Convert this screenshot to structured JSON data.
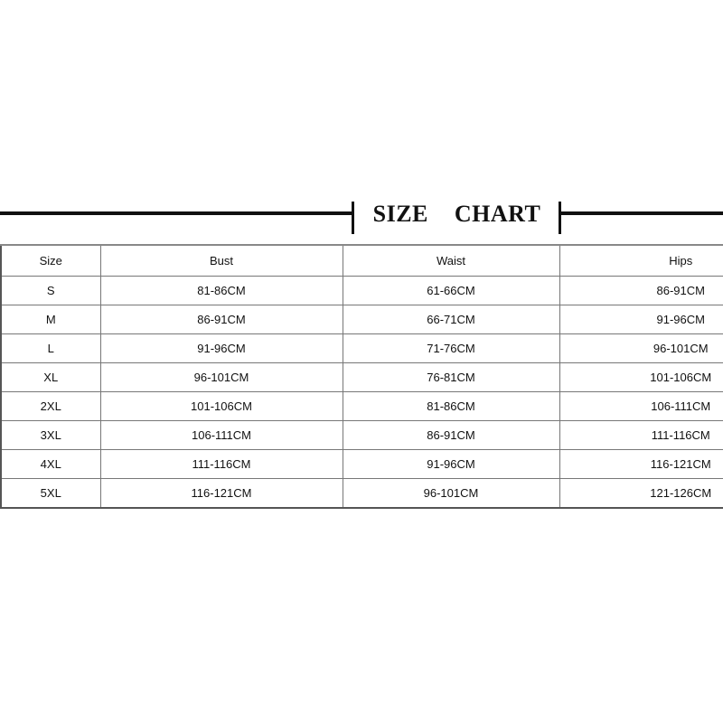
{
  "title": "SIZE CHART",
  "table": {
    "headers": [
      "Size",
      "Bust",
      "Waist",
      "Hips"
    ],
    "rows": [
      [
        "S",
        "81-86CM",
        "61-66CM",
        "86-91CM"
      ],
      [
        "M",
        "86-91CM",
        "66-71CM",
        "91-96CM"
      ],
      [
        "L",
        "91-96CM",
        "71-76CM",
        "96-101CM"
      ],
      [
        "XL",
        "96-101CM",
        "76-81CM",
        "101-106CM"
      ],
      [
        "2XL",
        "101-106CM",
        "81-86CM",
        "106-111CM"
      ],
      [
        "3XL",
        "106-111CM",
        "86-91CM",
        "111-116CM"
      ],
      [
        "4XL",
        "111-116CM",
        "91-96CM",
        "116-121CM"
      ],
      [
        "5XL",
        "116-121CM",
        "96-101CM",
        "121-126CM"
      ]
    ]
  }
}
